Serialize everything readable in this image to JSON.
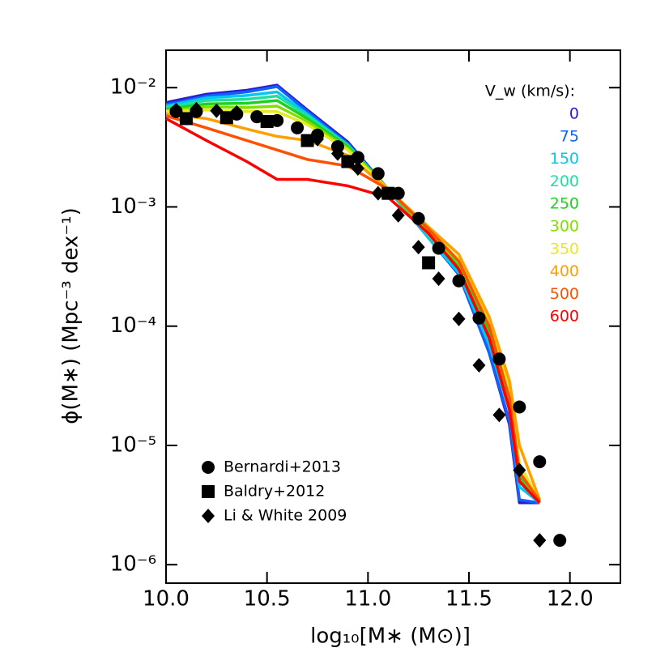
{
  "chart_data": {
    "type": "line",
    "xlabel": "log₁₀[M∗ (M⊙)]",
    "ylabel": "ϕ(M∗) (Mpc⁻³ dex⁻¹)",
    "legend_title": "V_w (km/s):",
    "xlim": [
      10.0,
      12.25
    ],
    "ylim": [
      7e-07,
      0.0206
    ],
    "ylog": true,
    "xticks": [
      {
        "value": 10.0,
        "label": "10.0"
      },
      10.5,
      {
        "value": 11.0,
        "label": "11.0"
      },
      11.5,
      {
        "value": 12.0,
        "label": "12.0"
      }
    ],
    "yticks": [
      {
        "value": 1e-06,
        "label": "10⁻⁶"
      },
      {
        "value": 1e-05,
        "label": "10⁻⁵"
      },
      {
        "value": 0.0001,
        "label": "10⁻⁴"
      },
      {
        "value": 0.001,
        "label": "10⁻³"
      },
      {
        "value": 0.01,
        "label": "10⁻²"
      }
    ],
    "x": [
      10.0,
      10.2,
      10.4,
      10.55,
      10.7,
      10.9,
      11.1,
      11.3,
      11.45,
      11.6,
      11.7,
      11.75,
      11.85
    ],
    "series": [
      {
        "name": "0",
        "color": "#2a1ad0",
        "values": [
          0.0075,
          0.0088,
          0.0095,
          0.0105,
          0.0065,
          0.0035,
          0.0014,
          0.0006,
          0.00028,
          6e-05,
          1.5e-05,
          3.3e-06,
          3.3e-06
        ]
      },
      {
        "name": "75",
        "color": "#1060ff",
        "values": [
          0.0072,
          0.0085,
          0.0092,
          0.0102,
          0.0063,
          0.0034,
          0.0014,
          0.00055,
          0.00027,
          6e-05,
          1.6e-05,
          3.5e-06,
          3.3e-06
        ]
      },
      {
        "name": "150",
        "color": "#00c8f0",
        "values": [
          0.007,
          0.0082,
          0.0086,
          0.0092,
          0.006,
          0.0033,
          0.0014,
          0.00055,
          0.00028,
          7e-05,
          2e-05,
          4.5e-06,
          3.3e-06
        ]
      },
      {
        "name": "200",
        "color": "#20e0a0",
        "values": [
          0.0068,
          0.0078,
          0.008,
          0.0085,
          0.0058,
          0.0033,
          0.0014,
          0.00058,
          0.0003,
          8e-05,
          2.2e-05,
          5e-06,
          3.3e-06
        ]
      },
      {
        "name": "250",
        "color": "#20d020",
        "values": [
          0.0066,
          0.0073,
          0.0074,
          0.0078,
          0.0055,
          0.0032,
          0.0014,
          0.0006,
          0.00032,
          9e-05,
          2.5e-05,
          5.5e-06,
          3.3e-06
        ]
      },
      {
        "name": "300",
        "color": "#80e000",
        "values": [
          0.0064,
          0.0069,
          0.0068,
          0.007,
          0.0052,
          0.0031,
          0.0014,
          0.00062,
          0.00034,
          0.0001,
          2.8e-05,
          6e-06,
          3.3e-06
        ]
      },
      {
        "name": "350",
        "color": "#e8e820",
        "values": [
          0.0063,
          0.0065,
          0.0063,
          0.0063,
          0.0049,
          0.003,
          0.0014,
          0.00065,
          0.00036,
          0.00011,
          3e-05,
          7e-06,
          3.4e-06
        ]
      },
      {
        "name": "400",
        "color": "#ffa000",
        "values": [
          0.006,
          0.0055,
          0.0045,
          0.0039,
          0.0036,
          0.0027,
          0.0014,
          0.00068,
          0.0004,
          0.00012,
          3.5e-05,
          1e-05,
          3.5e-06
        ]
      },
      {
        "name": "500",
        "color": "#ff5000",
        "values": [
          0.0058,
          0.0046,
          0.0036,
          0.003,
          0.0025,
          0.0022,
          0.0014,
          0.00065,
          0.00035,
          0.0001,
          2.5e-05,
          6e-06,
          3.4e-06
        ]
      },
      {
        "name": "600",
        "color": "#ff0000",
        "values": [
          0.0055,
          0.0036,
          0.0024,
          0.0017,
          0.0017,
          0.0015,
          0.0012,
          0.0006,
          0.0003,
          8e-05,
          2e-05,
          5e-06,
          3.3e-06
        ]
      },
      {
        "name": "Bernardi+2013",
        "marker": "circle",
        "color": "#000000",
        "x": [
          10.05,
          10.15,
          10.35,
          10.45,
          10.55,
          10.65,
          10.75,
          10.85,
          10.95,
          11.05,
          11.15,
          11.25,
          11.35,
          11.45,
          11.55,
          11.65,
          11.75,
          11.85,
          11.95
        ],
        "values": [
          0.0063,
          0.0063,
          0.006,
          0.0057,
          0.0053,
          0.0046,
          0.004,
          0.0032,
          0.0026,
          0.0019,
          0.0013,
          0.0008,
          0.00045,
          0.00024,
          0.000117,
          5.3e-05,
          2.1e-05,
          7.3e-06,
          1.6e-06
        ]
      },
      {
        "name": "Baldry+2012",
        "marker": "square",
        "color": "#000000",
        "x": [
          10.1,
          10.3,
          10.5,
          10.7,
          10.9,
          11.1,
          11.3
        ],
        "values": [
          0.0055,
          0.0056,
          0.0052,
          0.0036,
          0.0024,
          0.0013,
          0.00034
        ]
      },
      {
        "name": "Li & White 2009",
        "marker": "diamond",
        "color": "#000000",
        "x": [
          10.05,
          10.15,
          10.25,
          10.35,
          10.75,
          10.85,
          10.95,
          11.05,
          11.15,
          11.25,
          11.35,
          11.45,
          11.55,
          11.65,
          11.75,
          11.85
        ],
        "values": [
          0.0065,
          0.0066,
          0.0064,
          0.0062,
          0.0037,
          0.0028,
          0.0021,
          0.0013,
          0.00085,
          0.00046,
          0.00025,
          0.000115,
          4.7e-05,
          1.8e-05,
          6.2e-06,
          1.6e-06
        ]
      }
    ]
  }
}
